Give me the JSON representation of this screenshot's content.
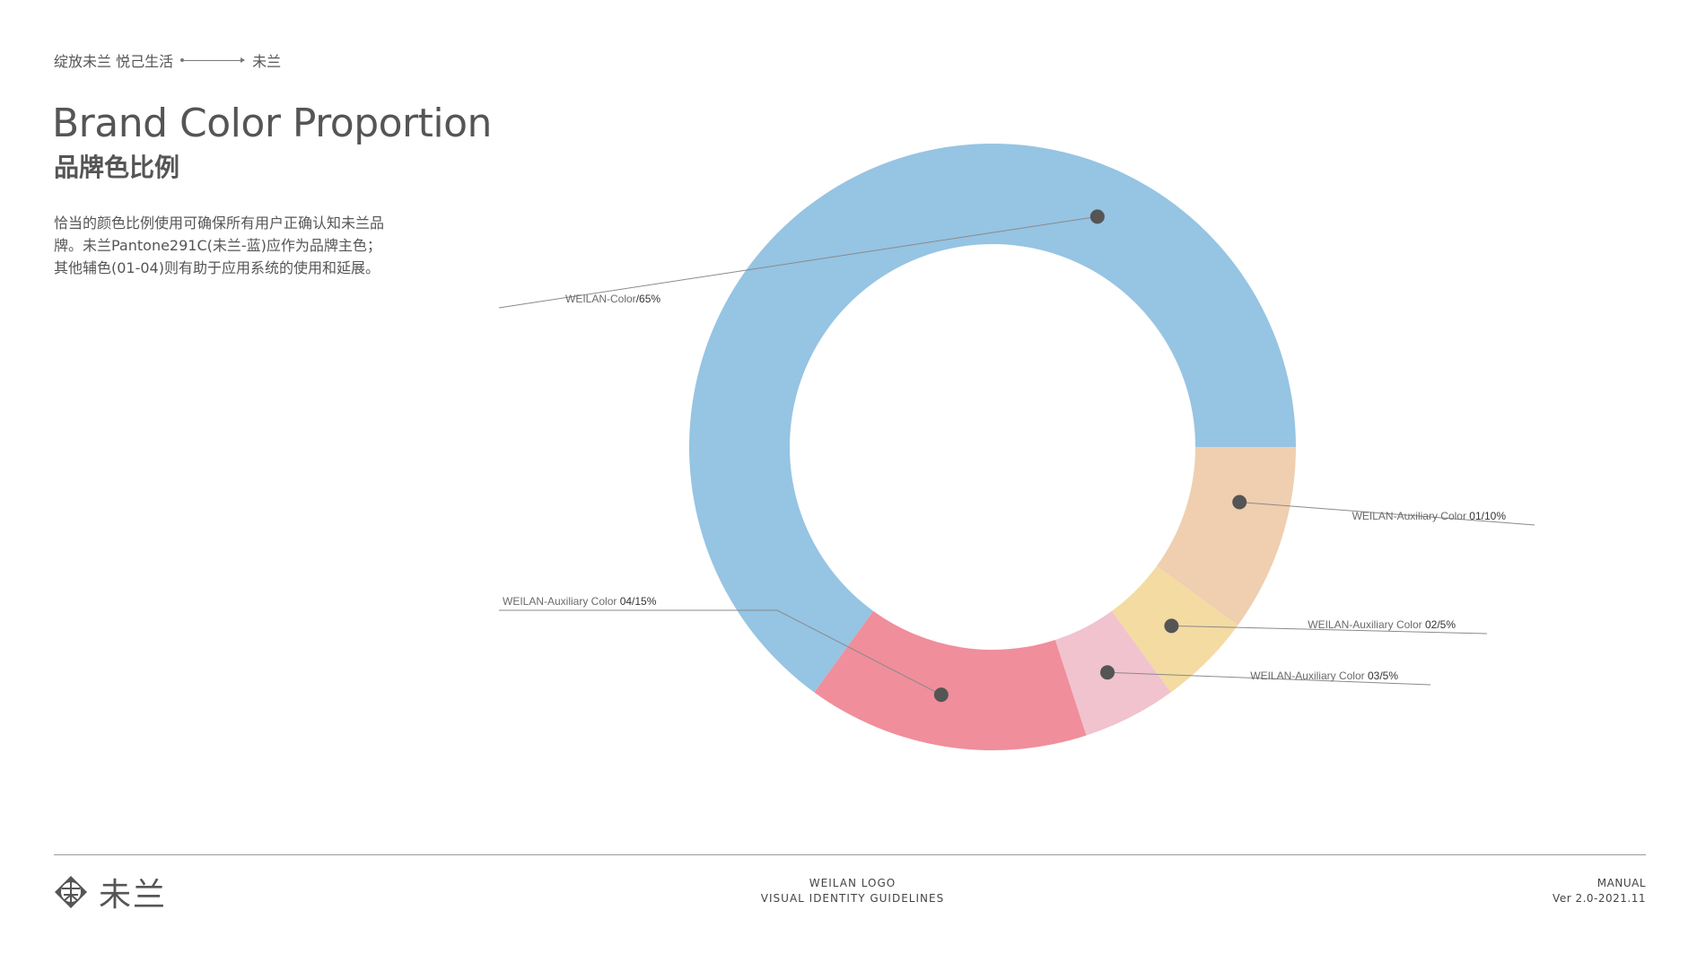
{
  "header": {
    "breadcrumb_left": "绽放未兰 悦己生活",
    "breadcrumb_right": "未兰"
  },
  "page": {
    "title": "Brand Color Proportion",
    "subtitle": "品牌色比例",
    "description": "恰当的颜色比例使用可确保所有用户正确认知未兰品牌。未兰Pantone291C(未兰-蓝)应作为品牌主色；其他辅色(01-04)则有助于应用系统的使用和延展。"
  },
  "chart_data": {
    "type": "pie",
    "categories": [
      "WEILAN-Color",
      "WEILAN-Auxiliary Color 01",
      "WEILAN-Auxiliary Color 02",
      "WEILAN-Auxiliary Color 03",
      "WEILAN-Auxiliary Color 04"
    ],
    "values": [
      65,
      10,
      5,
      5,
      15
    ],
    "labels": [
      {
        "name": "WEILAN-Color",
        "value_text": "/65%"
      },
      {
        "name": "WEILAN-Auxiliary Color ",
        "value_text": "01/10%"
      },
      {
        "name": "WEILAN-Auxiliary Color ",
        "value_text": "02/5%"
      },
      {
        "name": "WEILAN-Auxiliary Color ",
        "value_text": "03/5%"
      },
      {
        "name": "WEILAN-Auxiliary Color ",
        "value_text": "04/15%"
      }
    ],
    "colors": [
      "#96c4e3",
      "#efcfb0",
      "#f3dba2",
      "#f0c3ce",
      "#f08e9b"
    ],
    "marker_color": "#555555",
    "start_angle_deg": -90,
    "direction": "clockwise"
  },
  "footer": {
    "logo_text": "未兰",
    "center_line1": "WEILAN LOGO",
    "center_line2": "VISUAL IDENTITY GUIDELINES",
    "right_line1": "MANUAL",
    "right_line2": "Ver 2.0-2021.11"
  }
}
